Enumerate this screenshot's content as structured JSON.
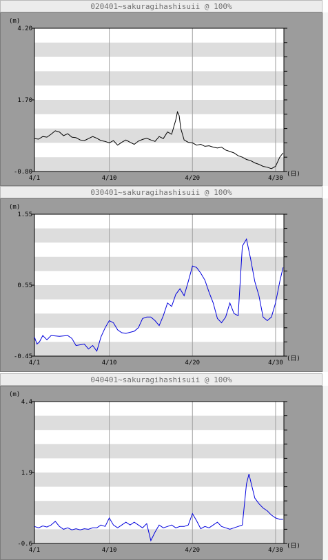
{
  "charts": [
    {
      "title": "020401~sakuragihashisuii @ 100%",
      "unit": "(m)",
      "day_unit": "(日)",
      "line_color": "#000000",
      "chart_data": {
        "type": "line",
        "ylim": [
          -0.8,
          4.2
        ],
        "ytick_labels": [
          "4.20",
          "1.70",
          "-0.80"
        ],
        "ytick_values": [
          4.2,
          1.7,
          -0.8
        ],
        "xlim": [
          1,
          31
        ],
        "xtick_labels": [
          "4/1",
          "4/10",
          "4/20",
          "4/30"
        ],
        "xtick_values": [
          1,
          10,
          20,
          30
        ],
        "series": [
          {
            "values": [
              [
                1,
                0.35
              ],
              [
                1.5,
                0.33
              ],
              [
                2,
                0.42
              ],
              [
                2.5,
                0.4
              ],
              [
                3,
                0.5
              ],
              [
                3.5,
                0.62
              ],
              [
                4,
                0.58
              ],
              [
                4.5,
                0.45
              ],
              [
                5,
                0.52
              ],
              [
                5.5,
                0.4
              ],
              [
                6,
                0.38
              ],
              [
                6.5,
                0.3
              ],
              [
                7,
                0.28
              ],
              [
                7.5,
                0.35
              ],
              [
                8,
                0.42
              ],
              [
                8.5,
                0.36
              ],
              [
                9,
                0.28
              ],
              [
                9.5,
                0.25
              ],
              [
                10,
                0.2
              ],
              [
                10.5,
                0.28
              ],
              [
                11,
                0.12
              ],
              [
                11.5,
                0.22
              ],
              [
                12,
                0.3
              ],
              [
                12.5,
                0.22
              ],
              [
                13,
                0.15
              ],
              [
                13.5,
                0.26
              ],
              [
                14,
                0.32
              ],
              [
                14.5,
                0.36
              ],
              [
                15,
                0.3
              ],
              [
                15.5,
                0.25
              ],
              [
                16,
                0.42
              ],
              [
                16.5,
                0.35
              ],
              [
                17,
                0.58
              ],
              [
                17.5,
                0.5
              ],
              [
                18,
                1.0
              ],
              [
                18.2,
                1.28
              ],
              [
                18.4,
                1.15
              ],
              [
                18.6,
                0.7
              ],
              [
                19,
                0.3
              ],
              [
                19.5,
                0.22
              ],
              [
                20,
                0.2
              ],
              [
                20.5,
                0.12
              ],
              [
                21,
                0.15
              ],
              [
                21.5,
                0.08
              ],
              [
                22,
                0.1
              ],
              [
                22.5,
                0.05
              ],
              [
                23,
                0.02
              ],
              [
                23.5,
                0.05
              ],
              [
                24,
                -0.05
              ],
              [
                24.5,
                -0.1
              ],
              [
                25,
                -0.15
              ],
              [
                25.5,
                -0.25
              ],
              [
                26,
                -0.3
              ],
              [
                26.5,
                -0.38
              ],
              [
                27,
                -0.42
              ],
              [
                27.5,
                -0.5
              ],
              [
                28,
                -0.55
              ],
              [
                28.5,
                -0.62
              ],
              [
                29,
                -0.65
              ],
              [
                29.5,
                -0.7
              ],
              [
                30,
                -0.62
              ],
              [
                30.5,
                -0.3
              ],
              [
                30.9,
                -0.15
              ]
            ]
          }
        ]
      }
    },
    {
      "title": "030401~sakuragihashisuii @ 100%",
      "unit": "(m)",
      "day_unit": "(日)",
      "line_color": "#0000dd",
      "chart_data": {
        "type": "line",
        "ylim": [
          -0.45,
          1.55
        ],
        "ytick_labels": [
          "1.55",
          "0.55",
          "-0.45"
        ],
        "ytick_values": [
          1.55,
          0.55,
          -0.45
        ],
        "xlim": [
          1,
          31
        ],
        "xtick_labels": [
          "4/1",
          "4/10",
          "4/20",
          "4/30"
        ],
        "xtick_values": [
          1,
          10,
          20,
          30
        ],
        "series": [
          {
            "values": [
              [
                1,
                -0.18
              ],
              [
                1.3,
                -0.28
              ],
              [
                1.6,
                -0.25
              ],
              [
                2,
                -0.16
              ],
              [
                2.5,
                -0.22
              ],
              [
                3,
                -0.16
              ],
              [
                4,
                -0.17
              ],
              [
                5,
                -0.16
              ],
              [
                5.5,
                -0.2
              ],
              [
                6,
                -0.3
              ],
              [
                7,
                -0.28
              ],
              [
                7.5,
                -0.35
              ],
              [
                8,
                -0.3
              ],
              [
                8.5,
                -0.38
              ],
              [
                9,
                -0.18
              ],
              [
                9.5,
                -0.05
              ],
              [
                10,
                0.05
              ],
              [
                10.5,
                0.02
              ],
              [
                11,
                -0.08
              ],
              [
                11.5,
                -0.12
              ],
              [
                12,
                -0.13
              ],
              [
                13,
                -0.1
              ],
              [
                13.5,
                -0.05
              ],
              [
                14,
                0.08
              ],
              [
                14.5,
                0.1
              ],
              [
                15,
                0.1
              ],
              [
                15.5,
                0.05
              ],
              [
                16,
                -0.02
              ],
              [
                16.5,
                0.12
              ],
              [
                17,
                0.3
              ],
              [
                17.5,
                0.25
              ],
              [
                18,
                0.42
              ],
              [
                18.5,
                0.5
              ],
              [
                19,
                0.4
              ],
              [
                19.5,
                0.6
              ],
              [
                20,
                0.82
              ],
              [
                20.5,
                0.8
              ],
              [
                21,
                0.72
              ],
              [
                21.5,
                0.62
              ],
              [
                22,
                0.45
              ],
              [
                22.5,
                0.3
              ],
              [
                23,
                0.08
              ],
              [
                23.5,
                0.02
              ],
              [
                24,
                0.1
              ],
              [
                24.5,
                0.3
              ],
              [
                25,
                0.15
              ],
              [
                25.5,
                0.12
              ],
              [
                26,
                1.1
              ],
              [
                26.5,
                1.2
              ],
              [
                27,
                0.92
              ],
              [
                27.5,
                0.6
              ],
              [
                28,
                0.4
              ],
              [
                28.5,
                0.1
              ],
              [
                29,
                0.05
              ],
              [
                29.5,
                0.1
              ],
              [
                30,
                0.3
              ],
              [
                30.5,
                0.6
              ],
              [
                30.9,
                0.8
              ]
            ]
          }
        ]
      }
    },
    {
      "title": "040401~sakuragihashisuii @ 100%",
      "unit": "(m)",
      "day_unit": "(日)",
      "line_color": "#0000dd",
      "chart_data": {
        "type": "line",
        "ylim": [
          -0.6,
          4.4
        ],
        "ytick_labels": [
          "4.4",
          "1.9",
          "-0.6"
        ],
        "ytick_values": [
          4.4,
          1.9,
          -0.6
        ],
        "xlim": [
          1,
          31
        ],
        "xtick_labels": [
          "4/1",
          "4/10",
          "4/20",
          "4/30"
        ],
        "xtick_values": [
          1,
          10,
          20,
          30
        ],
        "series": [
          {
            "values": [
              [
                1,
                0.0
              ],
              [
                1.5,
                -0.05
              ],
              [
                2,
                0.02
              ],
              [
                2.5,
                -0.02
              ],
              [
                3,
                0.05
              ],
              [
                3.5,
                0.18
              ],
              [
                4,
                0.0
              ],
              [
                4.5,
                -0.1
              ],
              [
                5,
                -0.05
              ],
              [
                5.5,
                -0.12
              ],
              [
                6,
                -0.08
              ],
              [
                6.5,
                -0.12
              ],
              [
                7,
                -0.08
              ],
              [
                7.5,
                -0.1
              ],
              [
                8,
                -0.05
              ],
              [
                8.5,
                -0.05
              ],
              [
                9,
                0.05
              ],
              [
                9.5,
                0.0
              ],
              [
                10,
                0.3
              ],
              [
                10.5,
                0.05
              ],
              [
                11,
                -0.05
              ],
              [
                11.5,
                0.05
              ],
              [
                12,
                0.15
              ],
              [
                12.5,
                0.05
              ],
              [
                13,
                0.15
              ],
              [
                13.5,
                0.05
              ],
              [
                14,
                -0.05
              ],
              [
                14.5,
                0.1
              ],
              [
                15,
                -0.5
              ],
              [
                15.5,
                -0.2
              ],
              [
                16,
                0.05
              ],
              [
                16.5,
                -0.05
              ],
              [
                17,
                0.0
              ],
              [
                17.5,
                0.05
              ],
              [
                18,
                -0.05
              ],
              [
                18.5,
                0.0
              ],
              [
                19,
                0.0
              ],
              [
                19.5,
                0.05
              ],
              [
                20,
                0.45
              ],
              [
                20.5,
                0.2
              ],
              [
                21,
                -0.08
              ],
              [
                21.5,
                0.0
              ],
              [
                22,
                -0.05
              ],
              [
                22.5,
                0.05
              ],
              [
                23,
                0.15
              ],
              [
                23.5,
                0.0
              ],
              [
                24,
                -0.05
              ],
              [
                24.5,
                -0.1
              ],
              [
                25,
                -0.05
              ],
              [
                25.5,
                0.0
              ],
              [
                26,
                0.05
              ],
              [
                26.5,
                1.5
              ],
              [
                26.8,
                1.85
              ],
              [
                27,
                1.6
              ],
              [
                27.5,
                1.0
              ],
              [
                28,
                0.8
              ],
              [
                28.5,
                0.65
              ],
              [
                29,
                0.55
              ],
              [
                29.5,
                0.4
              ],
              [
                30,
                0.3
              ],
              [
                30.5,
                0.25
              ],
              [
                30.9,
                0.25
              ]
            ]
          }
        ]
      }
    }
  ]
}
